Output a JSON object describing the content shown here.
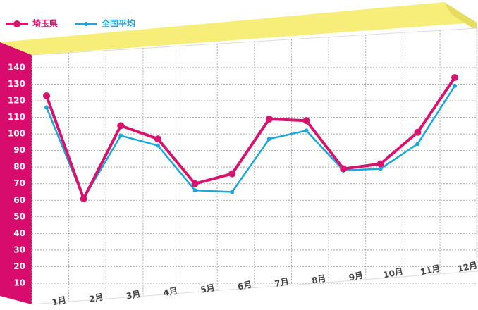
{
  "chart_data": {
    "type": "line",
    "categories": [
      "1月",
      "2月",
      "3月",
      "4月",
      "5月",
      "6月",
      "7月",
      "8月",
      "9月",
      "10月",
      "11月",
      "12月"
    ],
    "series": [
      {
        "name": "埼玉県",
        "color": "#d6146e",
        "values": [
          123,
          61,
          105,
          97,
          70,
          76,
          109,
          108,
          79,
          82,
          101,
          134
        ]
      },
      {
        "name": "全国平均",
        "color": "#1aa7dc",
        "values": [
          116,
          61,
          99,
          93,
          66,
          65,
          97,
          102,
          78,
          79,
          94,
          129
        ]
      }
    ],
    "ylim": [
      0,
      150
    ],
    "yticks": [
      10,
      20,
      30,
      40,
      50,
      60,
      70,
      80,
      90,
      100,
      110,
      120,
      130,
      140
    ],
    "grid": true
  }
}
